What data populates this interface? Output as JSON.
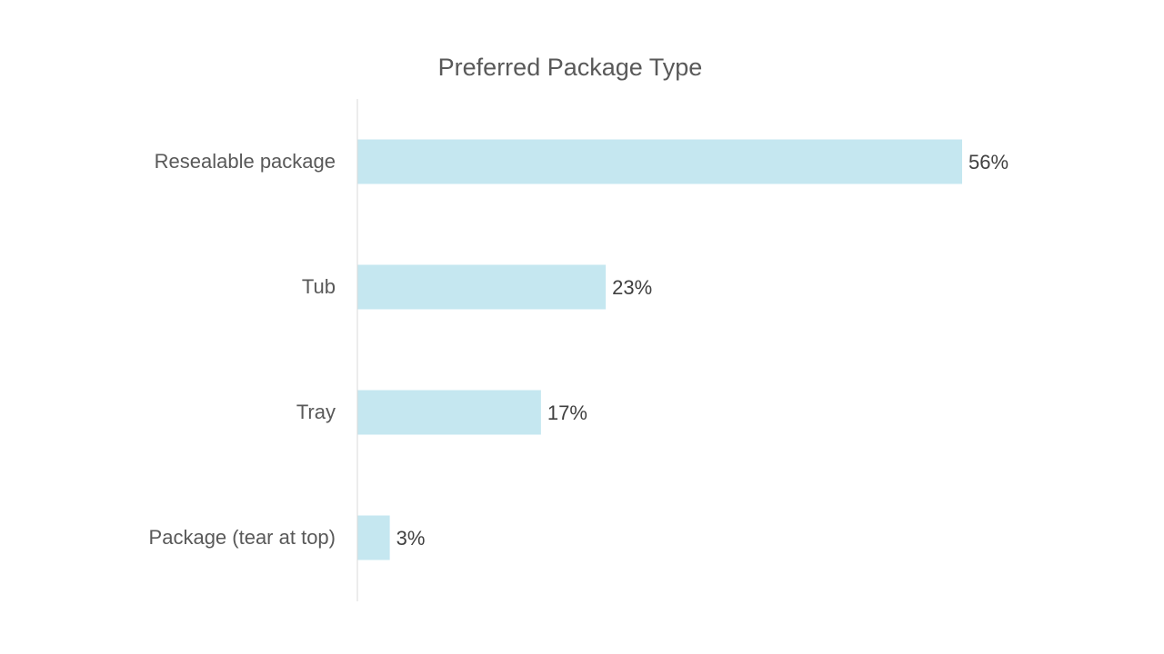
{
  "chart_data": {
    "type": "bar",
    "orientation": "horizontal",
    "title": "Preferred Package Type",
    "categories": [
      "Resealable package",
      "Tub",
      "Tray",
      "Package (tear at top)"
    ],
    "values": [
      56,
      23,
      17,
      3
    ],
    "value_labels": [
      "56%",
      "23%",
      "17%",
      "3%"
    ],
    "unit": "%",
    "xlim": [
      0,
      56
    ],
    "grid": false,
    "legend": "none",
    "bar_color": "#C5E7F0",
    "axis_color": "#D9D9D9"
  }
}
